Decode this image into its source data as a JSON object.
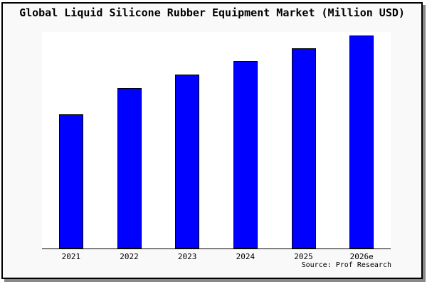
{
  "window": {
    "title": "Global Liquid Silicone Rubber Equipment Market (Million USD)"
  },
  "colors": {
    "bar_fill": "#0000ff",
    "bar_edge": "#000000",
    "figure_bg": "#f9f9f9",
    "plot_bg": "#ffffff",
    "frame_border": "#000000",
    "shadow": "#888888",
    "axis_line": "#000000",
    "text": "#000000"
  },
  "chart_data": {
    "type": "bar",
    "title": "Global Liquid Silicone Rubber Equipment Market (Million USD)",
    "categories": [
      "2021",
      "2022",
      "2023",
      "2024",
      "2025",
      "2026e"
    ],
    "values_relative_to_max_pct": [
      63,
      75.3,
      81.7,
      88,
      94,
      100
    ],
    "series_note": "y-axis has no ticks or labels; values estimated as percent of tallest bar (2026e = 100)",
    "xlabel": "",
    "ylabel": "",
    "ylim_relative": [
      0,
      102
    ],
    "gridlines": false,
    "legend": null,
    "y_axis_labels_visible": false,
    "bar_color": "#0000ff",
    "source": "Source: Prof Research"
  }
}
